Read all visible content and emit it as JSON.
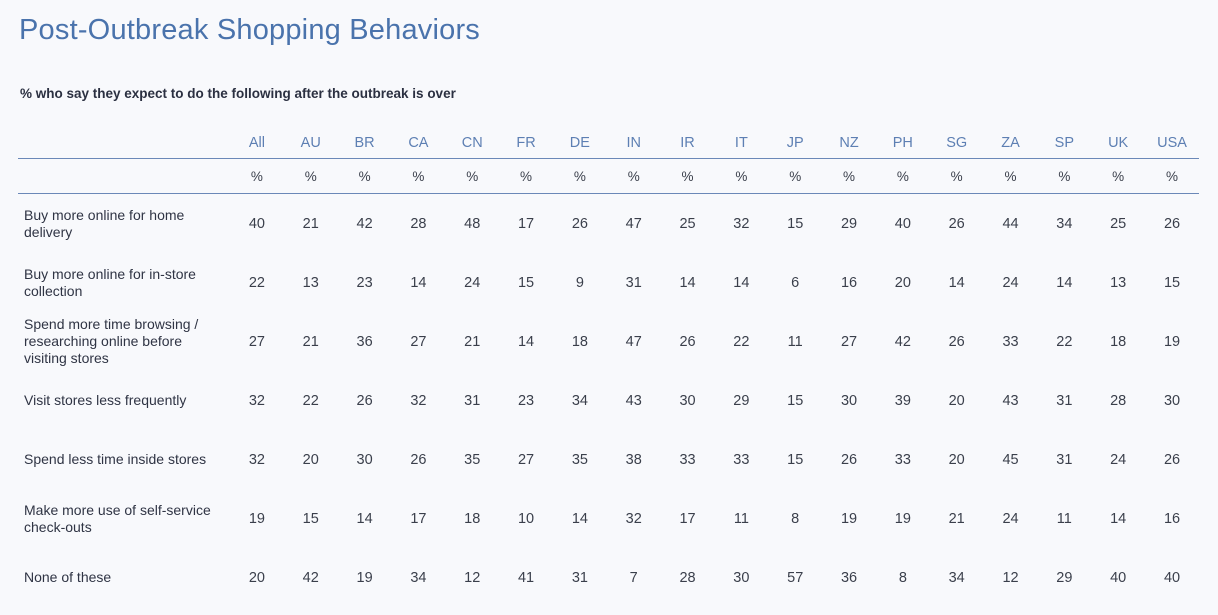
{
  "chart_data": {
    "type": "table",
    "title": "Post-Outbreak Shopping Behaviors",
    "subtitle": "% who say they expect to do the following after the outbreak is over",
    "columns": [
      "All",
      "AU",
      "BR",
      "CA",
      "CN",
      "FR",
      "DE",
      "IN",
      "IR",
      "IT",
      "JP",
      "NZ",
      "PH",
      "SG",
      "ZA",
      "SP",
      "UK",
      "USA"
    ],
    "unit": "%",
    "rows": [
      {
        "label": "Buy more online for home delivery",
        "values": [
          40,
          21,
          42,
          28,
          48,
          17,
          26,
          47,
          25,
          32,
          15,
          29,
          40,
          26,
          44,
          34,
          25,
          26
        ]
      },
      {
        "label": "Buy more online for in-store collection",
        "values": [
          22,
          13,
          23,
          14,
          24,
          15,
          9,
          31,
          14,
          14,
          6,
          16,
          20,
          14,
          24,
          14,
          13,
          15
        ]
      },
      {
        "label": "Spend more time browsing / researching online before visiting stores",
        "values": [
          27,
          21,
          36,
          27,
          21,
          14,
          18,
          47,
          26,
          22,
          11,
          27,
          42,
          26,
          33,
          22,
          18,
          19
        ]
      },
      {
        "label": "Visit stores less frequently",
        "values": [
          32,
          22,
          26,
          32,
          31,
          23,
          34,
          43,
          30,
          29,
          15,
          30,
          39,
          20,
          43,
          31,
          28,
          30
        ]
      },
      {
        "label": "Spend less time inside stores",
        "values": [
          32,
          20,
          30,
          26,
          35,
          27,
          35,
          38,
          33,
          33,
          15,
          26,
          33,
          20,
          45,
          31,
          24,
          26
        ]
      },
      {
        "label": "Make more use of self-service check-outs",
        "values": [
          19,
          15,
          14,
          17,
          18,
          10,
          14,
          32,
          17,
          11,
          8,
          19,
          19,
          21,
          24,
          11,
          14,
          16
        ]
      },
      {
        "label": "None of these",
        "values": [
          20,
          42,
          19,
          34,
          12,
          41,
          31,
          7,
          28,
          30,
          57,
          36,
          8,
          34,
          12,
          29,
          40,
          40
        ]
      }
    ]
  }
}
